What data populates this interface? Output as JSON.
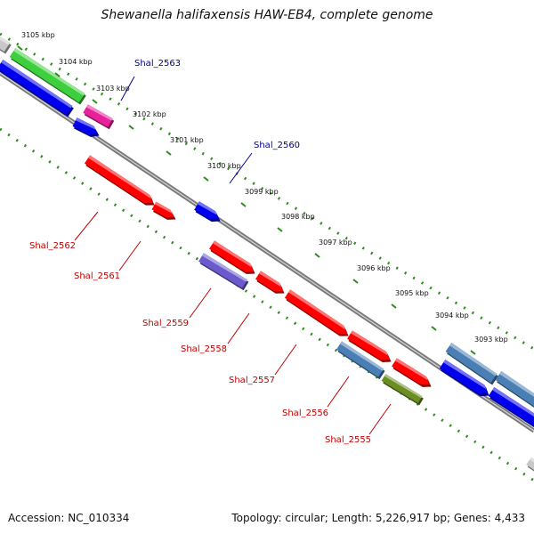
{
  "title": "Shewanella halifaxensis HAW-EB4, complete genome",
  "footer": {
    "accession": "Accession: NC_010334",
    "stats": "Topology: circular; Length: 5,226,917 bp; Genes: 4,433"
  },
  "colors": {
    "backbone": "#8a8a8a",
    "tick_dots": "#2e8b1e",
    "label_red": "#c00000",
    "label_blue": "#00008b",
    "red": "#ff0000",
    "blue": "#0000ee",
    "green": "#3ecf3e",
    "pink": "#e8209a",
    "steel": "#4a7fb5",
    "purple": "#6a5acd",
    "olive": "#6b8e23",
    "gray": "#c8c8c8"
  },
  "ticks": [
    {
      "label": "3105 kbp"
    },
    {
      "label": "3104 kbp"
    },
    {
      "label": "3103 kbp"
    },
    {
      "label": "3102 kbp"
    },
    {
      "label": "3101 kbp"
    },
    {
      "label": "3100 kbp"
    },
    {
      "label": "3099 kbp"
    },
    {
      "label": "3098 kbp"
    },
    {
      "label": "3097 kbp"
    },
    {
      "label": "3096 kbp"
    },
    {
      "label": "3095 kbp"
    },
    {
      "label": "3094 kbp"
    },
    {
      "label": "3093 kbp"
    }
  ],
  "genes": [
    {
      "label": "Shal_2563",
      "label_color": "blue"
    },
    {
      "label": "Shal_2562",
      "label_color": "red"
    },
    {
      "label": "Shal_2561",
      "label_color": "red"
    },
    {
      "label": "Shal_2560",
      "label_color": "blue"
    },
    {
      "label": "Shal_2559",
      "label_color": "red"
    },
    {
      "label": "Shal_2558",
      "label_color": "red"
    },
    {
      "label": "Shal_2557",
      "label_color": "red"
    },
    {
      "label": "Shal_2556",
      "label_color": "red"
    },
    {
      "label": "Shal_2555",
      "label_color": "red"
    }
  ]
}
